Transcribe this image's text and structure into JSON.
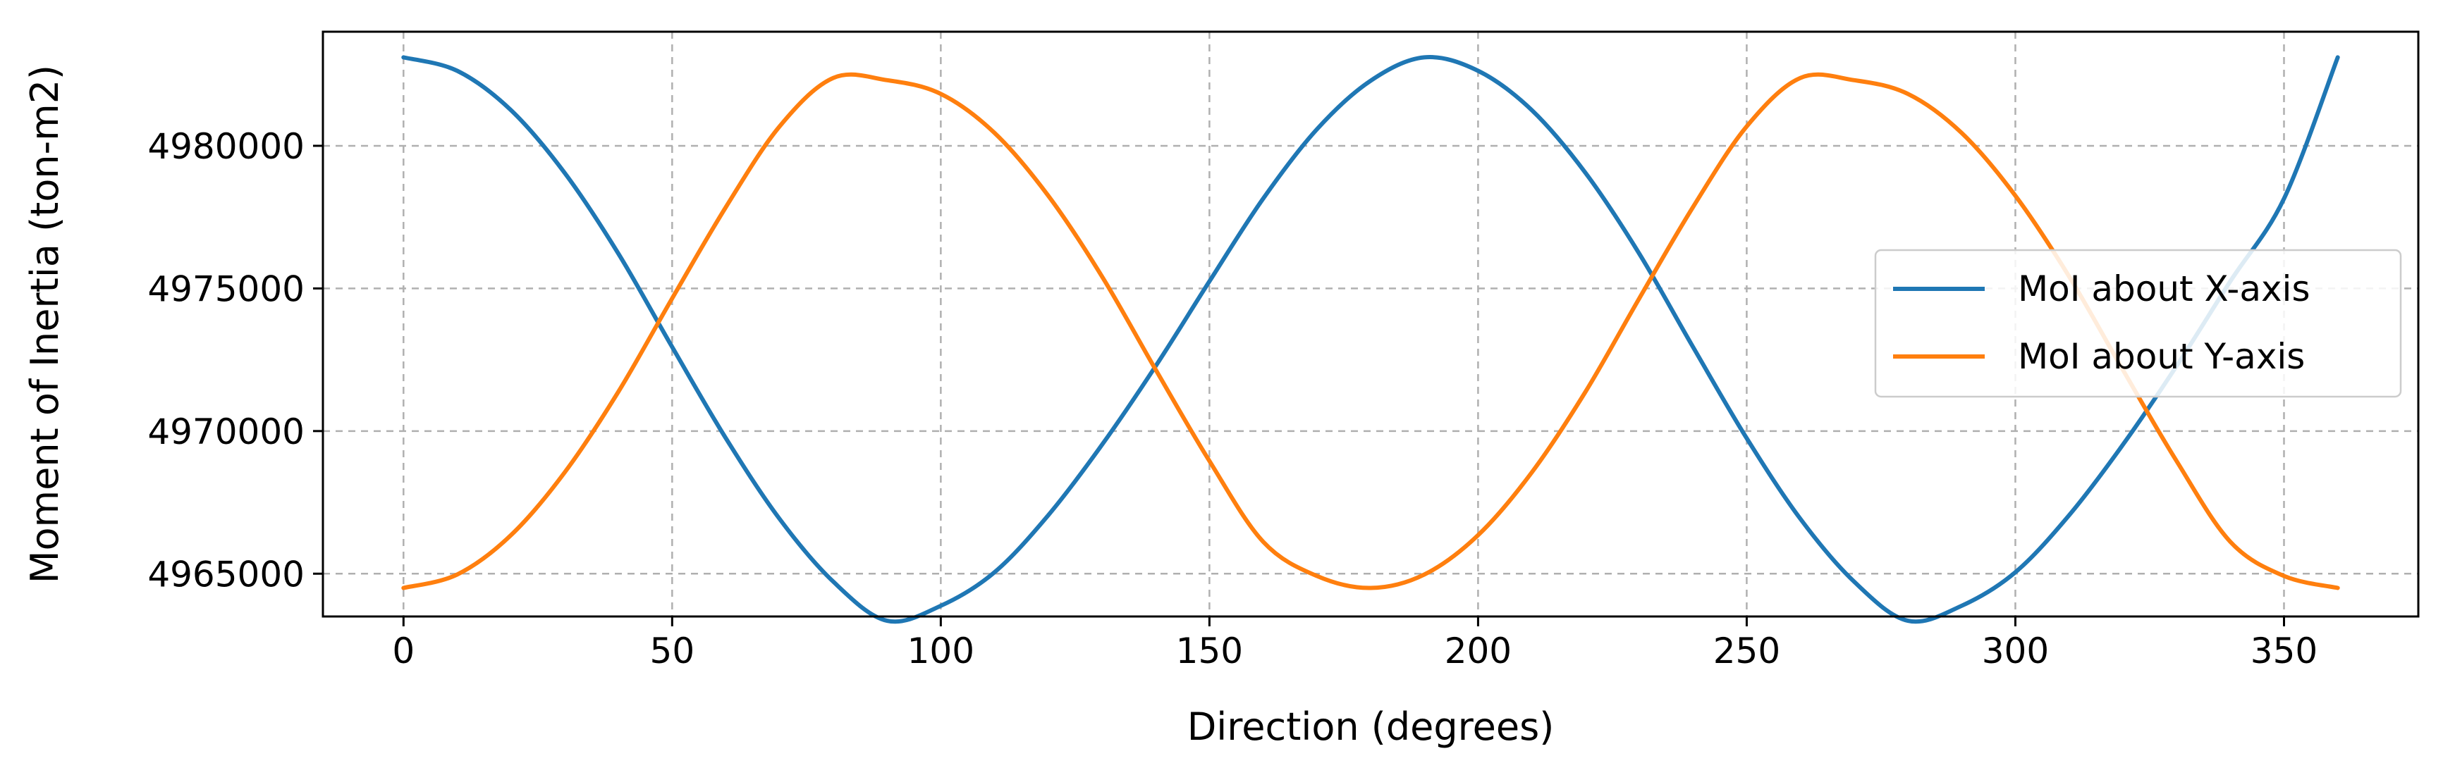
{
  "chart_data": {
    "type": "line",
    "title": "",
    "xlabel": "Direction (degrees)",
    "ylabel": "Moment of Inertia (ton-m2)",
    "xlim": [
      -15,
      375
    ],
    "ylim": [
      4963500,
      4984000
    ],
    "xticks": [
      0,
      50,
      100,
      150,
      200,
      250,
      300,
      350
    ],
    "xtick_labels": [
      "0",
      "50",
      "100",
      "150",
      "200",
      "250",
      "300",
      "350"
    ],
    "yticks": [
      4965000,
      4970000,
      4975000,
      4980000
    ],
    "ytick_labels": [
      "4965000",
      "4970000",
      "4975000",
      "4980000"
    ],
    "grid": true,
    "grid_style": "dashed",
    "legend_position": "center-right",
    "x": [
      0,
      10,
      20,
      30,
      40,
      50,
      60,
      70,
      80,
      90,
      100,
      110,
      120,
      130,
      140,
      150,
      160,
      170,
      180,
      190,
      200,
      210,
      220,
      230,
      240,
      250,
      260,
      270,
      280,
      290,
      300,
      310,
      320,
      330,
      340,
      350,
      360
    ],
    "series": [
      {
        "name": "MoI about X-axis",
        "color": "#1f77b4",
        "values": [
          4983100,
          4982628,
          4981250,
          4979050,
          4976220,
          4972950,
          4969750,
          4966920,
          4964720,
          4963350,
          4963875,
          4965050,
          4967050,
          4969520,
          4972280,
          4975250,
          4978150,
          4980580,
          4982280,
          4983100,
          4982628,
          4981250,
          4979050,
          4976220,
          4972950,
          4969750,
          4966920,
          4964720,
          4963350,
          4963875,
          4965050,
          4967050,
          4969520,
          4972280,
          4975250,
          4978150,
          4983100
        ]
      },
      {
        "name": "MoI about Y-axis",
        "color": "#ff7f0e",
        "values": [
          4964500,
          4964972,
          4966350,
          4968550,
          4971380,
          4974650,
          4977850,
          4980680,
          4982380,
          4982300,
          4981820,
          4980450,
          4978250,
          4975420,
          4972150,
          4968950,
          4966120,
          4964920,
          4964500,
          4964972,
          4966350,
          4968550,
          4971380,
          4974650,
          4977850,
          4980680,
          4982380,
          4982300,
          4981820,
          4980450,
          4978250,
          4975420,
          4972150,
          4968950,
          4966120,
          4964920,
          4964500
        ]
      }
    ]
  }
}
